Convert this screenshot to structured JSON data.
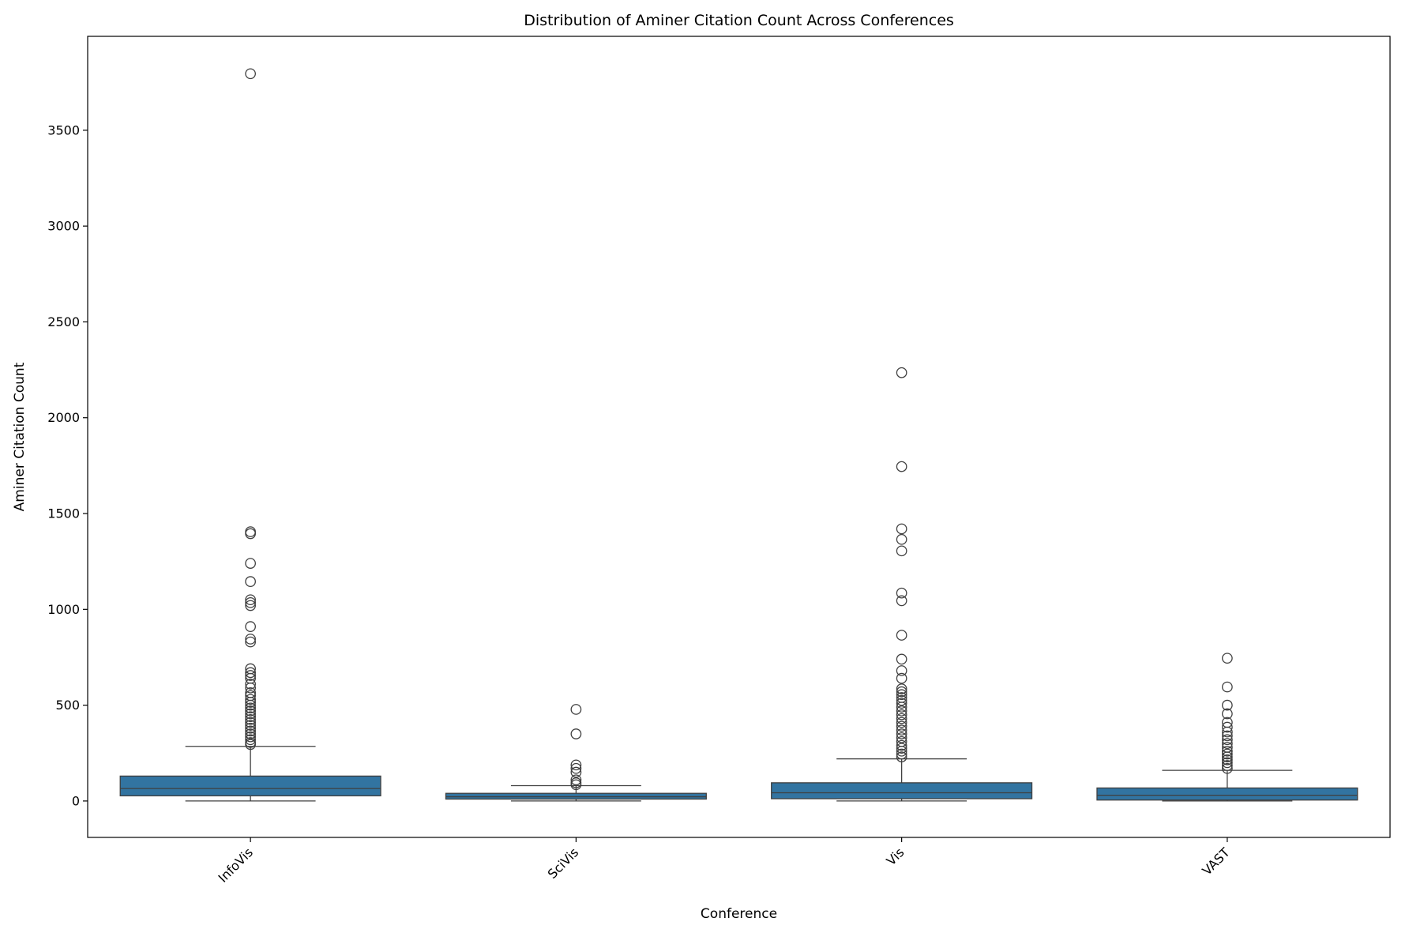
{
  "chart_data": {
    "type": "box",
    "title": "Distribution of Aminer Citation Count Across Conferences",
    "xlabel": "Conference",
    "ylabel": "Aminer Citation Count",
    "ylim": [
      -190,
      3990
    ],
    "yticks": [
      0,
      500,
      1000,
      1500,
      2000,
      2500,
      3000,
      3500
    ],
    "categories": [
      "InfoVis",
      "SciVis",
      "Vis",
      "VAST"
    ],
    "grid": false,
    "legend": "none",
    "box_color": "#3274a1",
    "line_color": "#3f3f3f",
    "boxes": [
      {
        "name": "InfoVis",
        "whisker_low": 0,
        "q1": 27,
        "median": 65,
        "q3": 130,
        "whisker_high": 285,
        "outliers": [
          3795,
          1405,
          1395,
          1240,
          1145,
          1050,
          1035,
          1020,
          910,
          845,
          830,
          690,
          670,
          655,
          640,
          610,
          590,
          565,
          550,
          530,
          515,
          500,
          485,
          470,
          455,
          440,
          425,
          410,
          395,
          380,
          365,
          350,
          335,
          320,
          305,
          295
        ]
      },
      {
        "name": "SciVis",
        "whisker_low": 0,
        "q1": 10,
        "median": 22,
        "q3": 40,
        "whisker_high": 80,
        "outliers": [
          478,
          350,
          188,
          170,
          150,
          110,
          95,
          85
        ]
      },
      {
        "name": "Vis",
        "whisker_low": 0,
        "q1": 12,
        "median": 43,
        "q3": 95,
        "whisker_high": 220,
        "outliers": [
          2235,
          1745,
          1420,
          1365,
          1305,
          1085,
          1045,
          865,
          740,
          680,
          640,
          585,
          570,
          555,
          540,
          525,
          510,
          490,
          470,
          450,
          430,
          410,
          390,
          370,
          350,
          330,
          310,
          290,
          275,
          260,
          245,
          230
        ]
      },
      {
        "name": "VAST",
        "whisker_low": 0,
        "q1": 5,
        "median": 30,
        "q3": 68,
        "whisker_high": 160,
        "outliers": [
          745,
          595,
          500,
          455,
          410,
          385,
          360,
          340,
          320,
          300,
          280,
          260,
          245,
          230,
          215,
          200,
          185,
          170
        ]
      }
    ]
  }
}
